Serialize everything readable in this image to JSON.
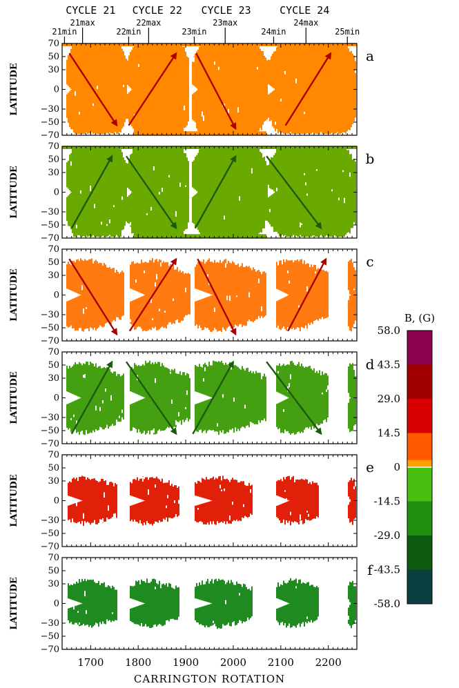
{
  "chart_data": {
    "type": "heatmap",
    "xlabel": "CARRINGTON ROTATION",
    "ylabel": "LATITUDE",
    "xlim": [
      1640,
      2260
    ],
    "ylim": [
      -70,
      70
    ],
    "x_ticks": [
      1700,
      1800,
      1900,
      2000,
      2100,
      2200
    ],
    "y_ticks": [
      -70,
      -50,
      -30,
      0,
      30,
      50,
      70
    ],
    "cycles": [
      {
        "label": "CYCLE 21",
        "x": 1700
      },
      {
        "label": "CYCLE 22",
        "x": 1840
      },
      {
        "label": "CYCLE 23",
        "x": 1985
      },
      {
        "label": "CYCLE 24",
        "x": 2150
      }
    ],
    "epochs": [
      {
        "label": "21min",
        "x": 1645
      },
      {
        "label": "21max",
        "x": 1683
      },
      {
        "label": "22min",
        "x": 1780
      },
      {
        "label": "22max",
        "x": 1822
      },
      {
        "label": "23min",
        "x": 1918
      },
      {
        "label": "23max",
        "x": 1983
      },
      {
        "label": "24min",
        "x": 2085
      },
      {
        "label": "24max",
        "x": 2153
      },
      {
        "label": "25min",
        "x": 2240
      }
    ],
    "panels": [
      {
        "label": "a",
        "color": "#ff8800",
        "arrow_color": "#aa0000",
        "bands": [
          [
            1648,
            1775
          ],
          [
            1775,
            1907
          ],
          [
            1912,
            2070
          ],
          [
            2072,
            2258
          ]
        ],
        "fill": "wide",
        "arrows": [
          [
            1655,
            55,
            1755,
            -55
          ],
          [
            1780,
            -55,
            1880,
            55
          ],
          [
            1922,
            55,
            2005,
            -60
          ],
          [
            2110,
            -55,
            2205,
            55
          ]
        ]
      },
      {
        "label": "b",
        "color": "#6aaa00",
        "arrow_color": "#1d5a10",
        "bands": [
          [
            1648,
            1775
          ],
          [
            1775,
            1907
          ],
          [
            1912,
            2070
          ],
          [
            2072,
            2258
          ]
        ],
        "fill": "wide",
        "arrows": [
          [
            1660,
            -55,
            1745,
            55
          ],
          [
            1775,
            55,
            1880,
            -55
          ],
          [
            1920,
            -55,
            2005,
            55
          ],
          [
            2070,
            55,
            2185,
            -55
          ]
        ]
      },
      {
        "label": "c",
        "color": "#ff7a10",
        "arrow_color": "#aa0000",
        "bands": [
          [
            1648,
            1770
          ],
          [
            1782,
            1908
          ],
          [
            1918,
            2068
          ],
          [
            2088,
            2200
          ],
          [
            2240,
            2258
          ]
        ],
        "fill": "butterfly",
        "arrows": [
          [
            1655,
            55,
            1755,
            -60
          ],
          [
            1782,
            -55,
            1880,
            55
          ],
          [
            1925,
            55,
            2005,
            -60
          ],
          [
            2115,
            -55,
            2195,
            55
          ]
        ]
      },
      {
        "label": "d",
        "color": "#44a010",
        "arrow_color": "#1d5a10",
        "bands": [
          [
            1648,
            1770
          ],
          [
            1782,
            1908
          ],
          [
            1918,
            2068
          ],
          [
            2088,
            2200
          ],
          [
            2240,
            2258
          ]
        ],
        "fill": "butterfly",
        "arrows": [
          [
            1660,
            -55,
            1745,
            55
          ],
          [
            1775,
            55,
            1880,
            -55
          ],
          [
            1915,
            -55,
            2000,
            55
          ],
          [
            2070,
            55,
            2185,
            -55
          ]
        ]
      },
      {
        "label": "e",
        "color": "#e02008",
        "arrow_color": "",
        "bands": [
          [
            1650,
            1755
          ],
          [
            1782,
            1885
          ],
          [
            1918,
            2040
          ],
          [
            2090,
            2180
          ],
          [
            2240,
            2258
          ]
        ],
        "fill": "narrow",
        "arrows": []
      },
      {
        "label": "f",
        "color": "#1f8a1f",
        "arrow_color": "",
        "bands": [
          [
            1650,
            1755
          ],
          [
            1782,
            1885
          ],
          [
            1918,
            2040
          ],
          [
            2090,
            2180
          ],
          [
            2240,
            2258
          ]
        ],
        "fill": "narrow",
        "arrows": []
      }
    ],
    "colorbar": {
      "title": "B, (G)",
      "tick_labels": [
        "58.0",
        "43.5",
        "29.0",
        "14.5",
        "0",
        "-14.5",
        "-29.0",
        "-43.5",
        "-58.0"
      ],
      "tick_values": [
        58.0,
        43.5,
        29.0,
        14.5,
        0,
        -14.5,
        -29.0,
        -43.5,
        -58.0
      ],
      "segments": [
        {
          "from": 58.0,
          "to": 43.5,
          "color": "#8b004f"
        },
        {
          "from": 43.5,
          "to": 29.0,
          "color": "#a00000"
        },
        {
          "from": 29.0,
          "to": 14.5,
          "color": "#d80000"
        },
        {
          "from": 14.5,
          "to": 0,
          "color": "#ff5a00"
        },
        {
          "from": 0,
          "to": -14.5,
          "color": "#48c010"
        },
        {
          "from": -14.5,
          "to": -29.0,
          "color": "#1f9010"
        },
        {
          "from": -29.0,
          "to": -43.5,
          "color": "#0d5a10"
        },
        {
          "from": -43.5,
          "to": -58.0,
          "color": "#0a4040"
        }
      ]
    }
  }
}
